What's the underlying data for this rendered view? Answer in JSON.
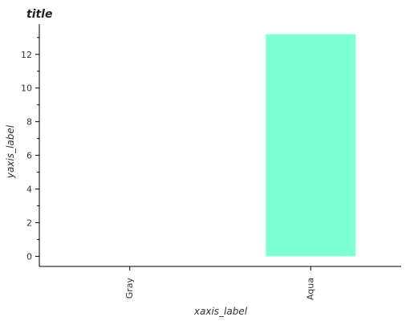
{
  "chart_data": {
    "type": "bar",
    "title": "title",
    "xlabel": "xaxis_label",
    "ylabel": "yaxis_label",
    "categories": [
      "Gray",
      "Aqua"
    ],
    "values": [
      0,
      13.2
    ],
    "colors": [
      "#808080",
      "#7fffd4"
    ],
    "ylim": [
      -0.6,
      13.8
    ],
    "yticks": [
      0,
      2,
      4,
      6,
      8,
      10,
      12
    ],
    "grid": false,
    "legend": "none"
  }
}
